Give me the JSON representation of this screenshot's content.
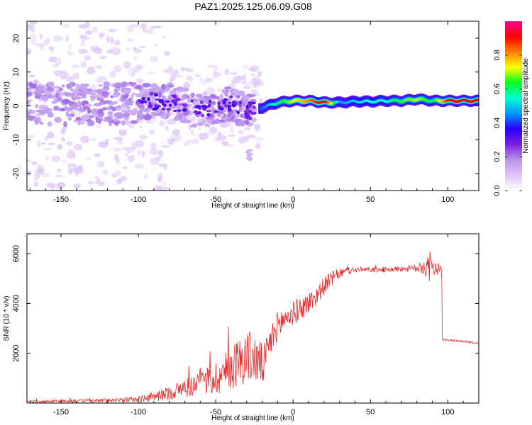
{
  "figure": {
    "title": "PAZ1.2025.125.06.09.G08"
  },
  "chart_data": [
    {
      "type": "heatmap",
      "title": "PAZ1.2025.125.06.09.G08",
      "xlabel": "Height of straight line (km)",
      "ylabel": "Frequency (Hz)",
      "xlim": [
        -172,
        120
      ],
      "ylim": [
        -25,
        25
      ],
      "x_ticks": [
        -150,
        -100,
        -50,
        0,
        50,
        100
      ],
      "x_tick_labels": [
        "-150",
        "-100",
        "-50",
        "0",
        "50",
        "100"
      ],
      "y_ticks": [
        -20,
        -10,
        0,
        10,
        20
      ],
      "y_tick_labels": [
        "-20",
        "-10",
        "0",
        "10",
        "20"
      ],
      "ridge": {
        "x": [
          -172,
          -150,
          -125,
          -100,
          -80,
          -60,
          -50,
          -40,
          -30,
          -20,
          -10,
          0,
          10,
          20,
          30,
          40,
          50,
          60,
          70,
          80,
          90,
          100,
          110,
          120
        ],
        "freq": [
          1.0,
          0.5,
          0.5,
          1.0,
          1.5,
          -1.5,
          -0.5,
          0.5,
          -1.5,
          -0.5,
          1.0,
          1.5,
          1.5,
          1.0,
          1.0,
          1.3,
          1.3,
          1.5,
          1.5,
          2.0,
          1.5,
          1.5,
          1.5,
          1.5
        ],
        "amplitude": [
          0.05,
          0.1,
          0.1,
          0.12,
          0.22,
          0.28,
          0.3,
          0.3,
          0.32,
          0.42,
          0.6,
          0.72,
          0.82,
          0.95,
          0.45,
          0.5,
          0.55,
          0.55,
          0.65,
          0.7,
          0.6,
          0.9,
          0.92,
          0.9
        ]
      },
      "colorbar": {
        "label": "Normalized spectral amplitude",
        "ticks": [
          0.0,
          0.2,
          0.4,
          0.6,
          0.8
        ],
        "tick_labels": [
          "0.0",
          "0.2",
          "0.4",
          "0.6",
          "0.8"
        ],
        "range": [
          0,
          1
        ],
        "colormap": [
          "#ffffff",
          "#ddc4f6",
          "#b894ec",
          "#7a1ee0",
          "#2a00ff",
          "#0096ff",
          "#00ffd0",
          "#00ff20",
          "#ffff00",
          "#ff8000",
          "#ff0000",
          "#ff0090"
        ]
      }
    },
    {
      "type": "line",
      "xlabel": "Height of straight line (km)",
      "ylabel": "SNR (10 * v/v)",
      "xlim": [
        -172,
        120
      ],
      "ylim": [
        0,
        6800
      ],
      "x_ticks": [
        -150,
        -100,
        -50,
        0,
        50,
        100
      ],
      "x_tick_labels": [
        "-150",
        "-100",
        "-50",
        "0",
        "50",
        "100"
      ],
      "y_ticks": [
        2000,
        4000,
        6000
      ],
      "y_tick_labels": [
        "2000",
        "4000",
        "6000"
      ],
      "series": [
        {
          "name": "SNR",
          "color": "#ee2222",
          "x": [
            -172,
            -150,
            -130,
            -110,
            -100,
            -90,
            -80,
            -70,
            -60,
            -50,
            -45,
            -40,
            -35,
            -30,
            -25,
            -20,
            -18,
            -15,
            -10,
            -5,
            0,
            5,
            10,
            15,
            20,
            25,
            30,
            35,
            40,
            50,
            60,
            70,
            80,
            85,
            88,
            90,
            92,
            95,
            96,
            97,
            100,
            110,
            120
          ],
          "y": [
            60,
            80,
            90,
            130,
            150,
            250,
            400,
            600,
            800,
            1000,
            1200,
            1400,
            1700,
            1900,
            1800,
            1500,
            1700,
            2400,
            3100,
            3400,
            3600,
            3800,
            4000,
            4300,
            4700,
            5000,
            5200,
            5300,
            5350,
            5350,
            5350,
            5400,
            5400,
            5450,
            5500,
            5300,
            5450,
            5350,
            5350,
            2550,
            2530,
            2480,
            2400
          ],
          "jitter": [
            40,
            60,
            70,
            90,
            120,
            200,
            280,
            400,
            500,
            700,
            800,
            900,
            1000,
            1100,
            1000,
            900,
            800,
            700,
            600,
            550,
            500,
            450,
            450,
            400,
            350,
            300,
            200,
            150,
            120,
            100,
            100,
            120,
            150,
            300,
            700,
            400,
            300,
            200,
            150,
            60,
            60,
            60,
            60
          ]
        }
      ]
    }
  ]
}
